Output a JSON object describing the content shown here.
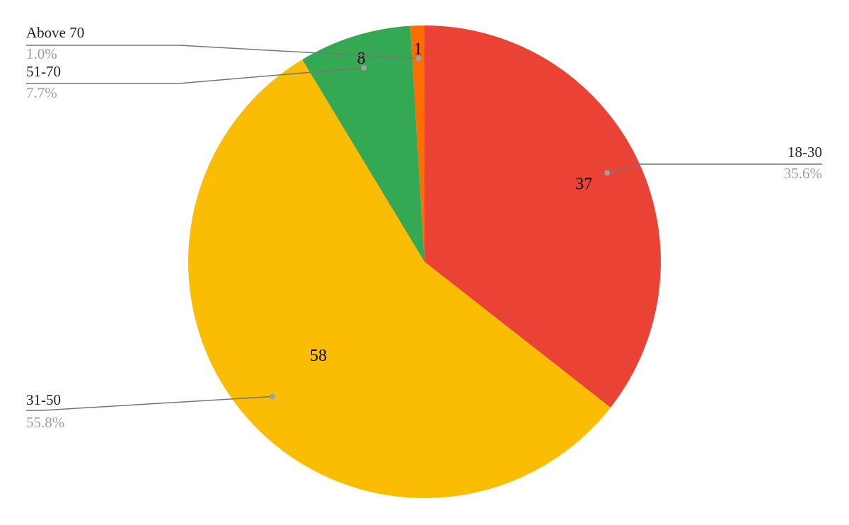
{
  "chart_data": {
    "type": "pie",
    "title": "",
    "start_angle_deg": 0,
    "direction": "clockwise",
    "slices": [
      {
        "label": "18-30",
        "value": 37,
        "value_label": "37",
        "percent_label": "35.6%",
        "color": "#ea4335"
      },
      {
        "label": "31-50",
        "value": 58,
        "value_label": "58",
        "percent_label": "55.8%",
        "color": "#fbbc04"
      },
      {
        "label": "51-70",
        "value": 8,
        "value_label": "8",
        "percent_label": "7.7%",
        "color": "#34a853"
      },
      {
        "label": "Above 70",
        "value": 1,
        "value_label": "1",
        "percent_label": "1.0%",
        "color": "#ff6d01"
      }
    ],
    "legend": "none",
    "labels": "leader-lines"
  }
}
